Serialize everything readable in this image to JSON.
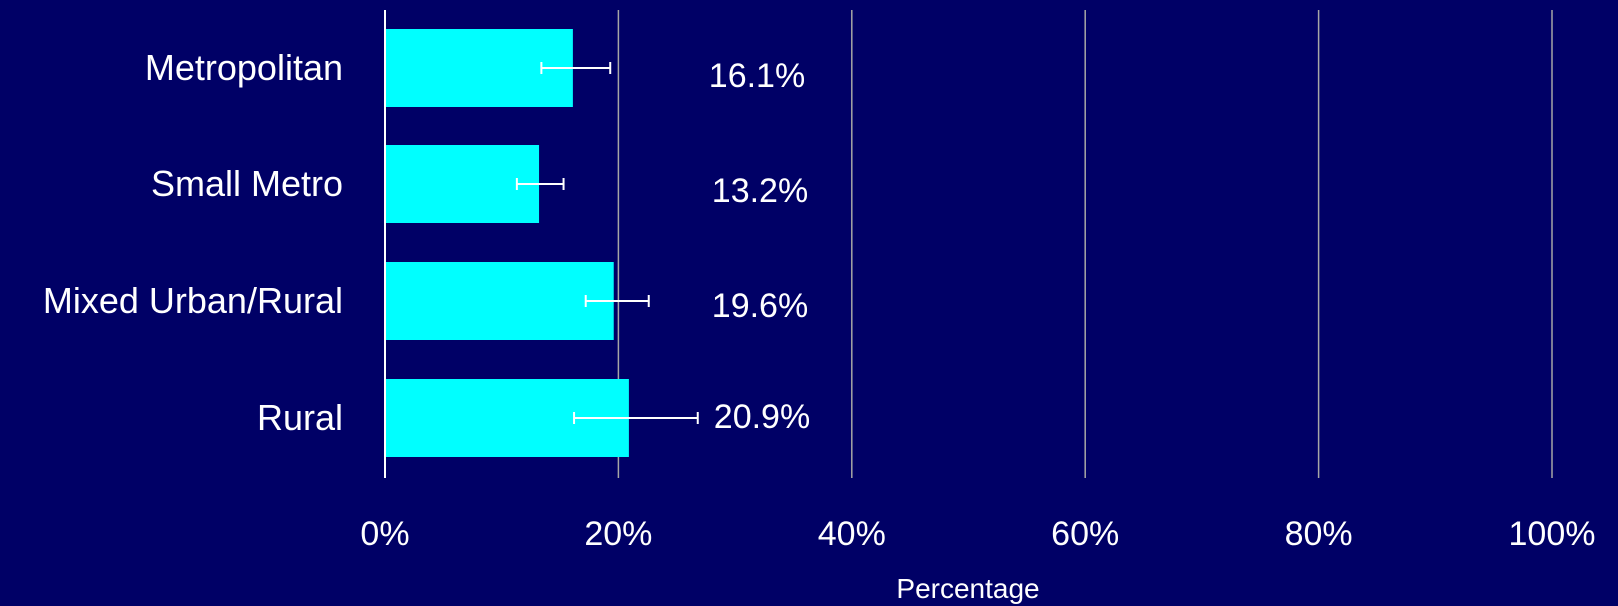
{
  "colors": {
    "background": "#000066",
    "bar": "#00FFFF",
    "text": "#FFFFFF",
    "gridline": "#A6A6A6",
    "error_bar": "#FFFFFF"
  },
  "chart_data": {
    "type": "bar",
    "orientation": "horizontal",
    "categories": [
      "Metropolitan",
      "Small Metro",
      "Mixed Urban/Rural",
      "Rural"
    ],
    "values": [
      16.1,
      13.2,
      19.6,
      20.9
    ],
    "value_labels": [
      "16.1%",
      "13.2%",
      "19.6%",
      "20.9%"
    ],
    "error_bars": [
      {
        "low": 13.4,
        "high": 19.3
      },
      {
        "low": 11.3,
        "high": 15.3
      },
      {
        "low": 17.2,
        "high": 22.6
      },
      {
        "low": 16.2,
        "high": 26.8
      }
    ],
    "xlabel": "Percentage",
    "xlim": [
      0,
      100
    ],
    "xticks": [
      0,
      20,
      40,
      60,
      80,
      100
    ],
    "xtick_labels": [
      "0%",
      "20%",
      "40%",
      "60%",
      "80%",
      "100%"
    ],
    "grid": "vertical",
    "legend": "none"
  }
}
